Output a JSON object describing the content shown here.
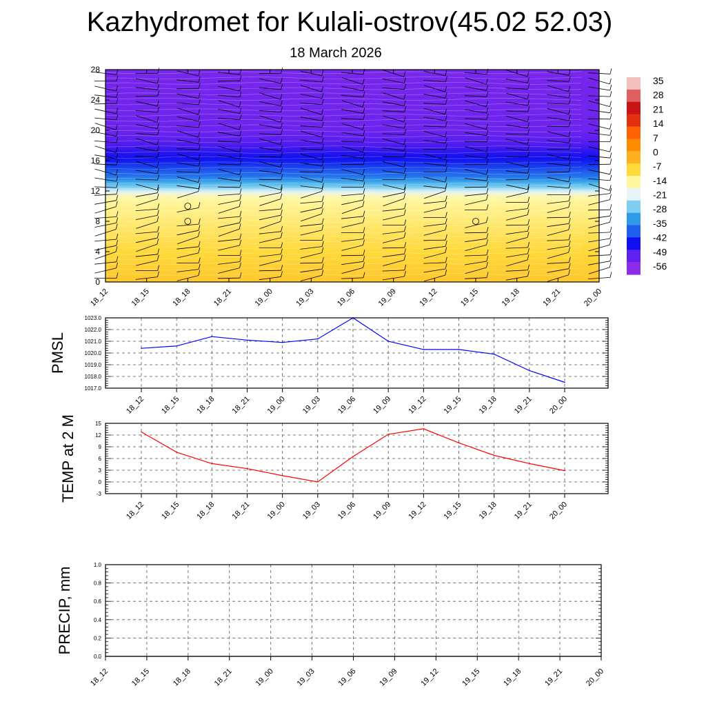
{
  "title": "Kazhydromet for Kulali-ostrov(45.02 52.03)",
  "subtitle": "18 March 2026",
  "time_labels": [
    "18_12",
    "18_15",
    "18_18",
    "18_21",
    "19_00",
    "19_03",
    "19_06",
    "19_09",
    "19_12",
    "19_15",
    "19_18",
    "19_21",
    "20_00"
  ],
  "chart_data": [
    {
      "type": "heatmap",
      "name": "temperature-cross-section",
      "title": "",
      "xlabel": "",
      "ylabel": "",
      "categories": [
        "18_12",
        "18_15",
        "18_18",
        "18_21",
        "19_00",
        "19_03",
        "19_06",
        "19_09",
        "19_12",
        "19_15",
        "19_18",
        "19_21",
        "20_00"
      ],
      "ylim": [
        0,
        28
      ],
      "yticks": [
        0,
        4,
        8,
        12,
        16,
        20,
        24,
        28
      ],
      "colorbar_labels": [
        "35",
        "28",
        "21",
        "14",
        "7",
        "0",
        "-7",
        "-14",
        "-21",
        "-28",
        "-35",
        "-42",
        "-49",
        "-56"
      ],
      "colorbar_range": [
        -63,
        42
      ],
      "colorbar_colors": [
        "#8c2ce8",
        "#6020f0",
        "#1010f0",
        "#1f5fee",
        "#2f9be8",
        "#7fd0f0",
        "#e8f4f8",
        "#fff6a0",
        "#ffd93a",
        "#ffb020",
        "#ff8c00",
        "#ff6000",
        "#e23010",
        "#c81414",
        "#e06060",
        "#f3c0c0"
      ],
      "profile": [
        [
          0,
          -4
        ],
        [
          4,
          -7
        ],
        [
          8,
          -11
        ],
        [
          11,
          -14
        ],
        [
          11.6,
          -18
        ],
        [
          12.5,
          -28
        ],
        [
          14,
          -40
        ],
        [
          16,
          -48
        ],
        [
          18,
          -54
        ],
        [
          20,
          -58
        ],
        [
          24,
          -59
        ],
        [
          28,
          -60
        ]
      ],
      "calm_marks": [
        {
          "x": 2,
          "y": 8
        },
        {
          "x": 2,
          "y": 10
        },
        {
          "x": 9,
          "y": 8
        }
      ]
    },
    {
      "type": "line",
      "name": "pmsl",
      "ylabel": "PMSL",
      "x": [
        "18_12",
        "18_15",
        "18_18",
        "18_21",
        "19_00",
        "19_03",
        "19_06",
        "19_09",
        "19_12",
        "19_15",
        "19_18",
        "19_21",
        "20_00"
      ],
      "values": [
        1020.4,
        1020.6,
        1021.4,
        1021.1,
        1020.9,
        1021.2,
        1023.0,
        1021.0,
        1020.3,
        1020.3,
        1019.9,
        1018.5,
        1017.5
      ],
      "ylim": [
        1017.0,
        1023.0
      ],
      "yticks": [
        "1017.0",
        "1018.0",
        "1019.0",
        "1020.0",
        "1021.0",
        "1022.0",
        "1023.0"
      ],
      "color": "#0000ff"
    },
    {
      "type": "line",
      "name": "temp-2m",
      "ylabel": "TEMP at 2 M",
      "x": [
        "18_12",
        "18_15",
        "18_18",
        "18_21",
        "19_00",
        "19_03",
        "19_06",
        "19_09",
        "19_12",
        "19_15",
        "19_18",
        "19_21",
        "20_00"
      ],
      "values": [
        12.8,
        7.6,
        4.7,
        3.4,
        1.6,
        0.0,
        6.5,
        12.2,
        13.6,
        10.0,
        6.8,
        4.7,
        2.9
      ],
      "ylim": [
        -3,
        15
      ],
      "yticks": [
        "-3",
        "0",
        "3",
        "6",
        "9",
        "12",
        "15"
      ],
      "color": "#ff0000"
    },
    {
      "type": "line",
      "name": "precip",
      "ylabel": "PRECIP, mm",
      "x": [
        "18_12",
        "18_15",
        "18_18",
        "18_21",
        "19_00",
        "19_03",
        "19_06",
        "19_09",
        "19_12",
        "19_15",
        "19_18",
        "19_21",
        "20_00"
      ],
      "values": [
        0,
        0,
        0,
        0,
        0,
        0,
        0,
        0,
        0,
        0,
        0,
        0,
        0
      ],
      "ylim": [
        0,
        1
      ],
      "yticks": [
        "0.0",
        "0.2",
        "0.4",
        "0.6",
        "0.8",
        "1.0"
      ],
      "color": "#006400"
    }
  ]
}
